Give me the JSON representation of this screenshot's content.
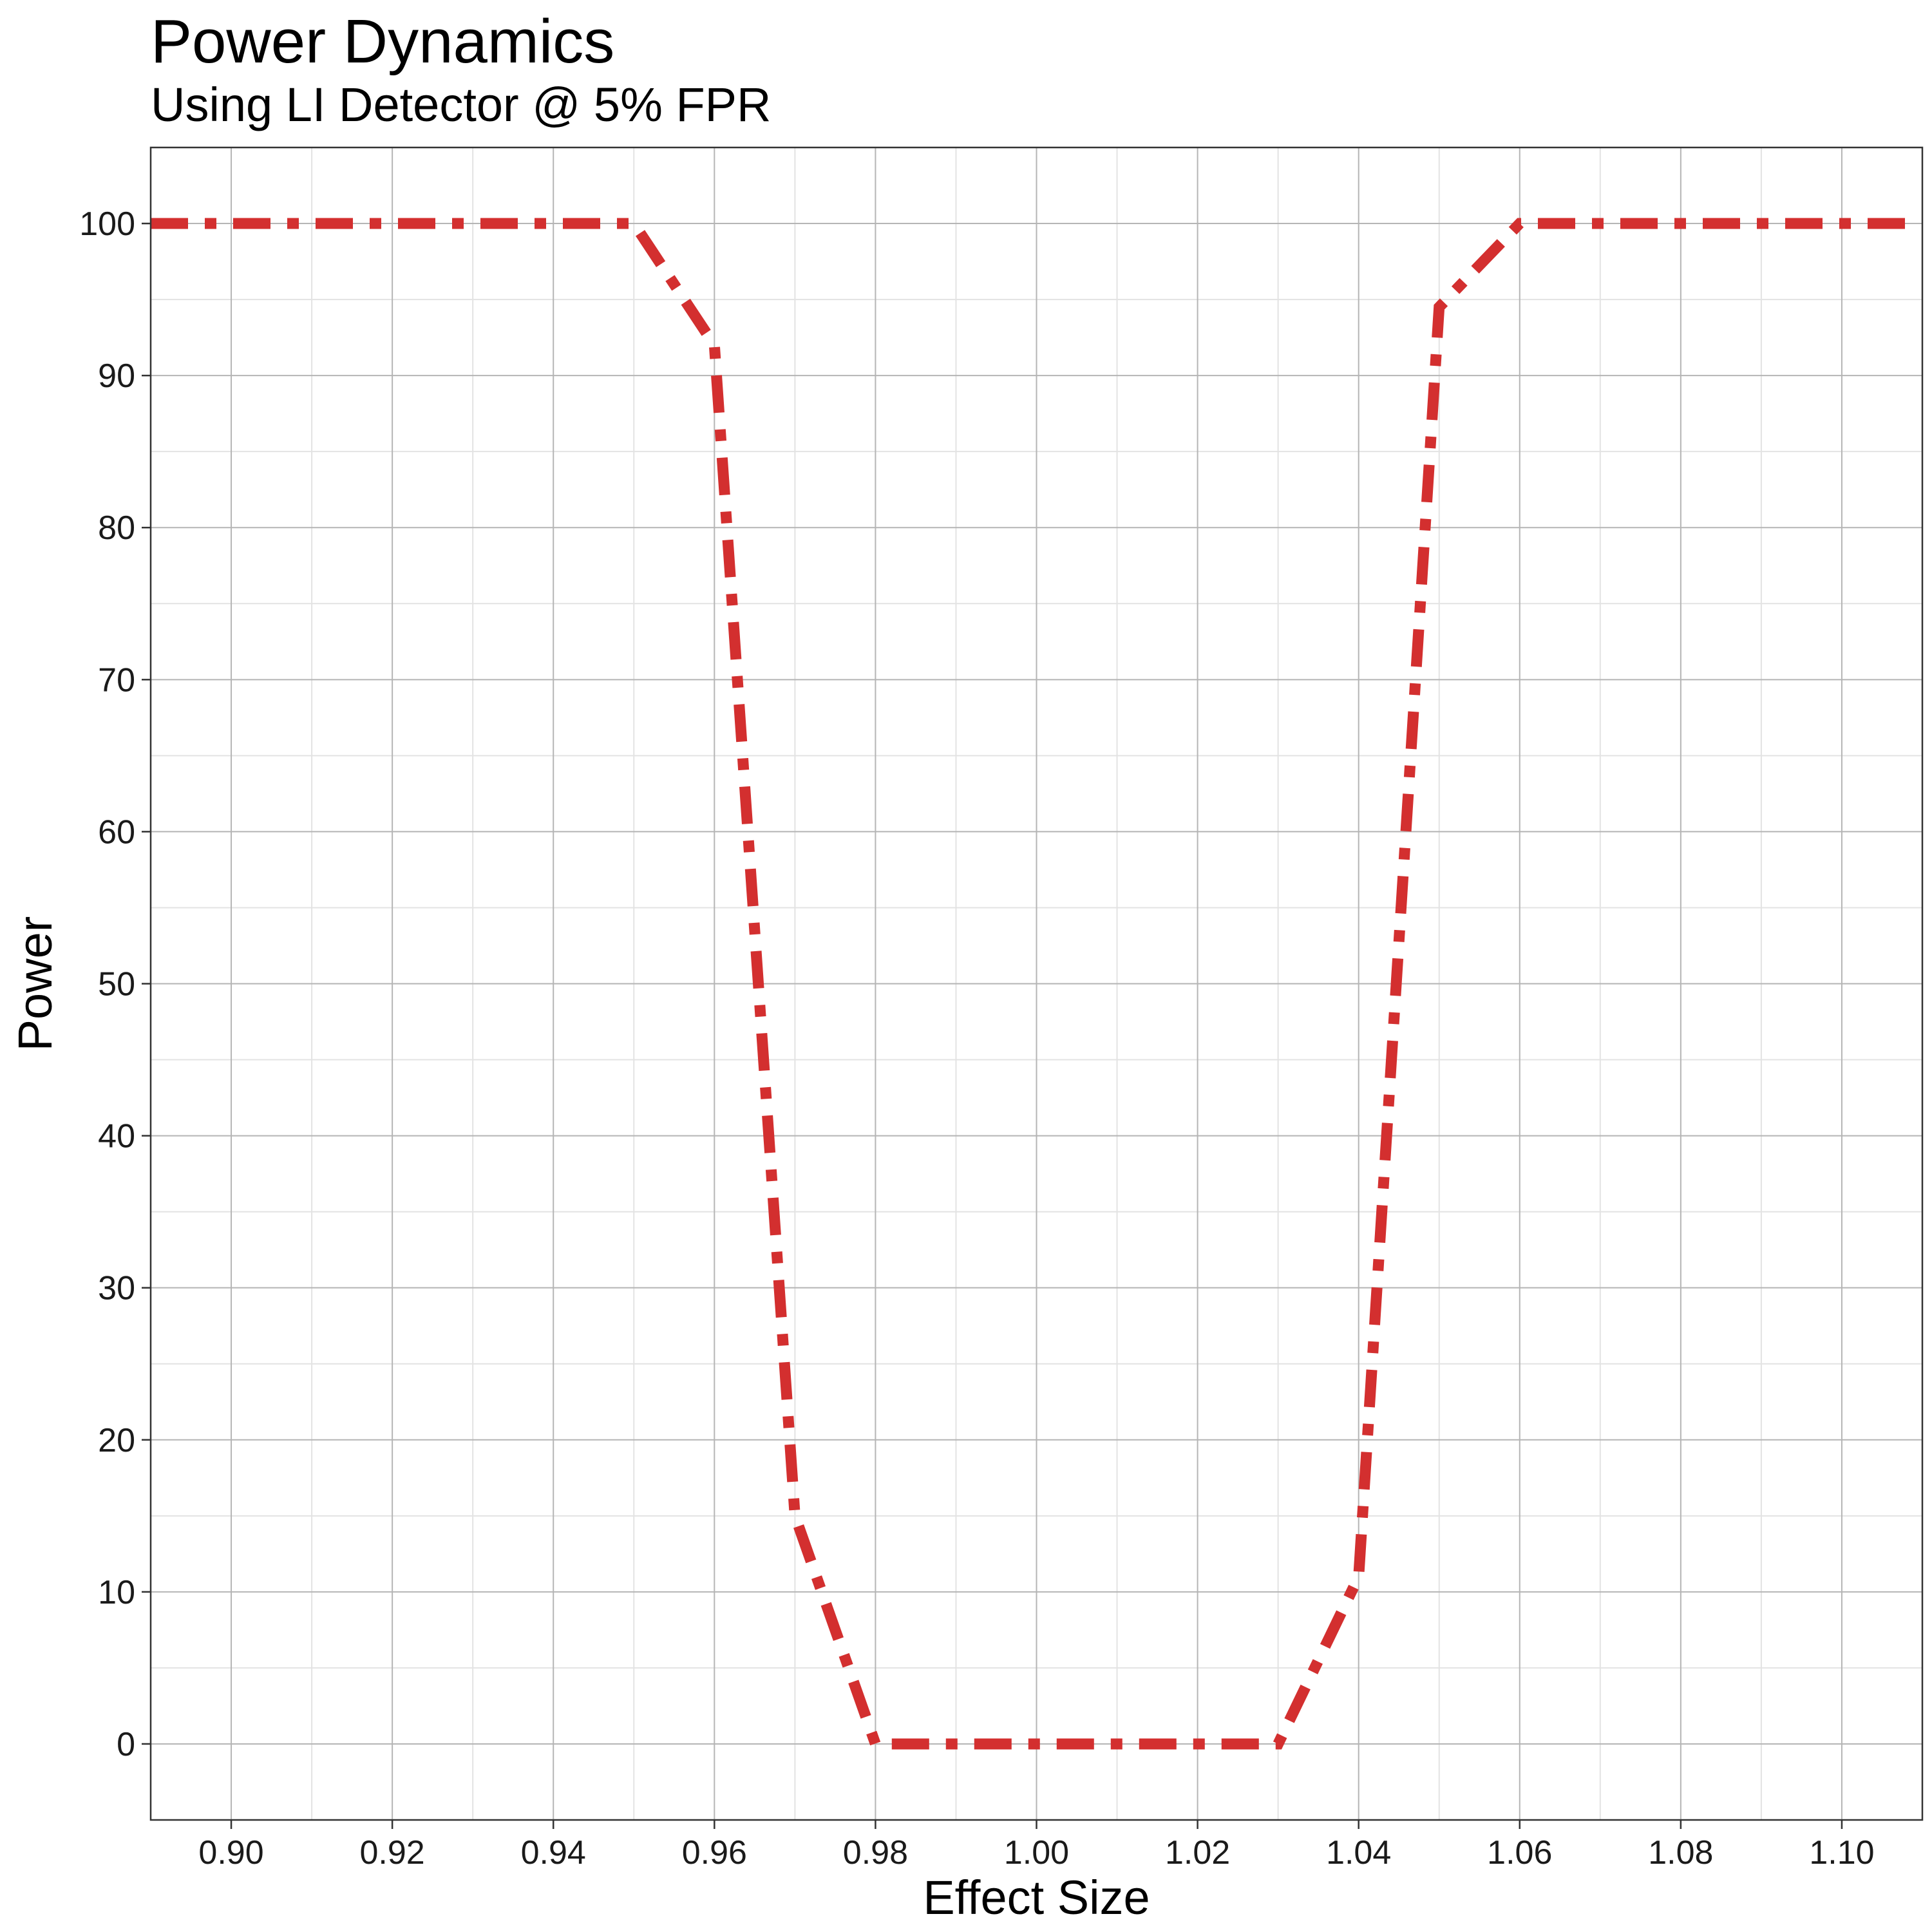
{
  "chart_data": {
    "type": "line",
    "title": "Power Dynamics",
    "subtitle": "Using LI Detector @ 5% FPR",
    "xlabel": "Effect Size",
    "ylabel": "Power",
    "xlim": [
      0.89,
      1.11
    ],
    "ylim": [
      -5,
      105
    ],
    "x_ticks": [
      0.9,
      0.92,
      0.94,
      0.96,
      0.98,
      1.0,
      1.02,
      1.04,
      1.06,
      1.08,
      1.1
    ],
    "x_tick_labels": [
      "0.90",
      "0.92",
      "0.94",
      "0.96",
      "0.98",
      "1.00",
      "1.02",
      "1.04",
      "1.06",
      "1.08",
      "1.10"
    ],
    "y_ticks": [
      0,
      10,
      20,
      30,
      40,
      50,
      60,
      70,
      80,
      90,
      100
    ],
    "y_tick_labels": [
      "0",
      "10",
      "20",
      "30",
      "40",
      "50",
      "60",
      "70",
      "80",
      "90",
      "100"
    ],
    "grid": true,
    "legend": "none",
    "series": [
      {
        "color": "#d32f2f",
        "line_style": "dashed",
        "x": [
          0.89,
          0.9,
          0.91,
          0.92,
          0.93,
          0.94,
          0.95,
          0.96,
          0.97,
          0.98,
          0.99,
          1.0,
          1.01,
          1.02,
          1.03,
          1.04,
          1.05,
          1.06,
          1.07,
          1.08,
          1.09,
          1.1,
          1.11
        ],
        "y": [
          100,
          100,
          100,
          100,
          100,
          100,
          100,
          92,
          15,
          0,
          0,
          0,
          0,
          0,
          0,
          11,
          94.5,
          100,
          100,
          100,
          100,
          100,
          100
        ]
      }
    ]
  }
}
